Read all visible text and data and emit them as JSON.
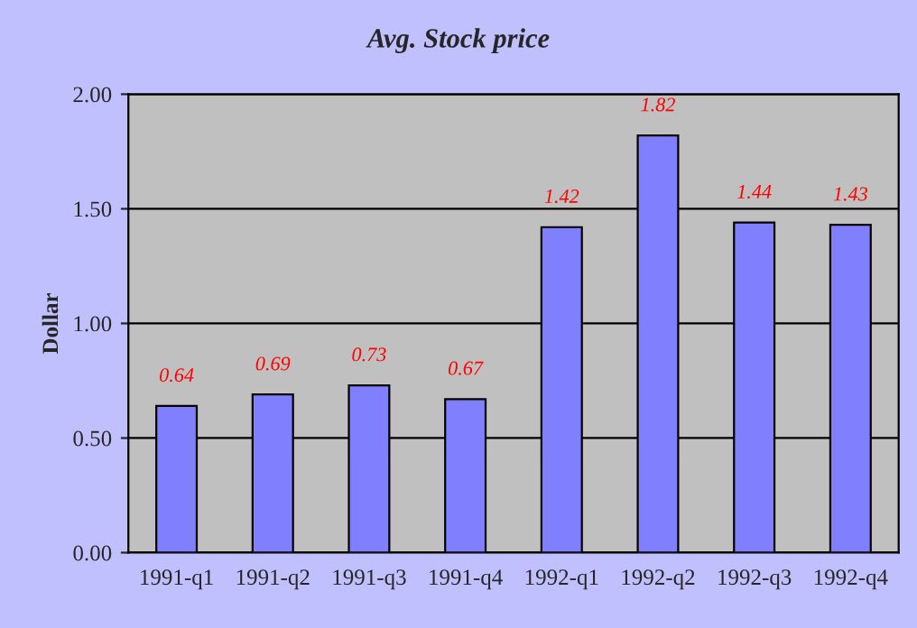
{
  "chart_data": {
    "type": "bar",
    "title": "Avg. Stock price",
    "ylabel": "Dollar",
    "categories": [
      "1991-q1",
      "1991-q2",
      "1991-q3",
      "1991-q4",
      "1992-q1",
      "1992-q2",
      "1992-q3",
      "1992-q4"
    ],
    "values": [
      0.64,
      0.69,
      0.73,
      0.67,
      1.42,
      1.82,
      1.44,
      1.43
    ],
    "color": "#8080ff",
    "data_labels": true,
    "ylim": [
      0,
      2
    ],
    "yticks": [
      {
        "value": 0,
        "label": "0.00"
      },
      {
        "value": 0.5,
        "label": "0.50"
      },
      {
        "value": 1,
        "label": "1.00"
      },
      {
        "value": 1.5,
        "label": "1.50"
      },
      {
        "value": 2,
        "label": "2.00"
      }
    ],
    "grid": "y",
    "legend": false
  }
}
